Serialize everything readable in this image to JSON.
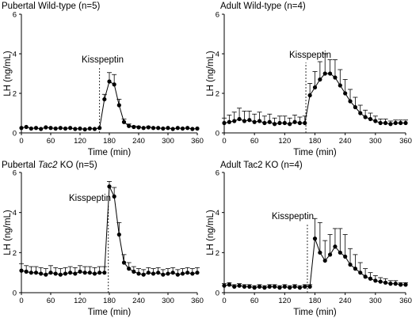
{
  "chart_data": [
    {
      "type": "line",
      "title_parts": [
        {
          "text": "Pubertal Wild-type (n=5)",
          "italic": false
        }
      ],
      "xlabel": "Time (min)",
      "ylabel": "LH (ng/mL)",
      "xlim": [
        0,
        360
      ],
      "ylim": [
        0,
        6
      ],
      "xticks": [
        0,
        60,
        120,
        180,
        240,
        300,
        360
      ],
      "yticks": [
        0,
        2,
        4,
        6
      ],
      "annotation": {
        "text": "Kisspeptin",
        "x": 160
      },
      "series": [
        {
          "x": [
            0,
            10,
            20,
            30,
            40,
            50,
            60,
            70,
            80,
            90,
            100,
            110,
            120,
            130,
            140,
            150,
            160,
            170,
            180,
            190,
            200,
            210,
            220,
            230,
            240,
            250,
            260,
            270,
            280,
            290,
            300,
            310,
            320,
            330,
            340,
            350,
            360
          ],
          "y": [
            0.25,
            0.3,
            0.22,
            0.25,
            0.2,
            0.28,
            0.25,
            0.22,
            0.25,
            0.22,
            0.25,
            0.2,
            0.22,
            0.18,
            0.22,
            0.2,
            0.25,
            1.7,
            2.6,
            2.45,
            1.4,
            0.55,
            0.35,
            0.3,
            0.28,
            0.25,
            0.28,
            0.25,
            0.25,
            0.22,
            0.25,
            0.2,
            0.25,
            0.22,
            0.25,
            0.2,
            0.22
          ],
          "err": [
            0,
            0,
            0,
            0,
            0,
            0,
            0,
            0,
            0,
            0,
            0,
            0,
            0,
            0,
            0,
            0,
            0,
            0.25,
            0.45,
            0.5,
            0.3,
            0.15,
            0.1,
            0.05,
            0.05,
            0,
            0.05,
            0,
            0,
            0,
            0,
            0,
            0,
            0,
            0,
            0,
            0
          ]
        }
      ]
    },
    {
      "type": "line",
      "title_parts": [
        {
          "text": "Adult Wild-type (n=4)",
          "italic": false
        }
      ],
      "xlabel": "Time (min)",
      "ylabel": "LH (ng/mL)",
      "xlim": [
        0,
        360
      ],
      "ylim": [
        0,
        6
      ],
      "xticks": [
        0,
        60,
        120,
        180,
        240,
        300,
        360
      ],
      "yticks": [
        0,
        2,
        4,
        6
      ],
      "annotation": {
        "text": "Kisspeptin",
        "x": 162
      },
      "series": [
        {
          "x": [
            0,
            10,
            20,
            30,
            40,
            50,
            60,
            70,
            80,
            90,
            100,
            110,
            120,
            130,
            140,
            150,
            160,
            170,
            180,
            190,
            200,
            210,
            220,
            230,
            240,
            250,
            260,
            270,
            280,
            290,
            300,
            310,
            320,
            330,
            340,
            350,
            360
          ],
          "y": [
            0.5,
            0.55,
            0.6,
            0.7,
            0.6,
            0.65,
            0.55,
            0.6,
            0.5,
            0.55,
            0.45,
            0.5,
            0.5,
            0.45,
            0.55,
            0.5,
            0.5,
            1.9,
            2.3,
            2.7,
            3.0,
            3.0,
            2.8,
            2.4,
            2.0,
            1.6,
            1.3,
            1.0,
            0.8,
            0.7,
            0.6,
            0.5,
            0.5,
            0.45,
            0.5,
            0.5,
            0.5
          ],
          "err": [
            0.25,
            0.35,
            0.45,
            0.55,
            0.5,
            0.45,
            0.4,
            0.45,
            0.35,
            0.4,
            0.3,
            0.35,
            0.35,
            0.3,
            0.35,
            0.3,
            0.35,
            0.6,
            0.8,
            0.9,
            1.0,
            0.7,
            0.9,
            0.8,
            0.7,
            0.6,
            0.5,
            0.4,
            0.35,
            0.3,
            0.25,
            0.2,
            0.2,
            0.15,
            0.15,
            0.15,
            0.15
          ]
        }
      ]
    },
    {
      "type": "line",
      "title_parts": [
        {
          "text": "Pubertal ",
          "italic": false
        },
        {
          "text": "Tac2",
          "italic": true
        },
        {
          "text": " KO (n=5)",
          "italic": false
        }
      ],
      "xlabel": "Time (min)",
      "ylabel": "LH (ng/mL)",
      "xlim": [
        0,
        360
      ],
      "ylim": [
        0,
        6
      ],
      "xticks": [
        0,
        60,
        120,
        180,
        240,
        300,
        360
      ],
      "yticks": [
        0,
        2,
        4,
        6
      ],
      "annotation": {
        "text": "Kisspeptin",
        "x": 178
      },
      "series": [
        {
          "x": [
            0,
            10,
            20,
            30,
            40,
            50,
            60,
            70,
            80,
            90,
            100,
            110,
            120,
            130,
            140,
            150,
            160,
            170,
            180,
            190,
            200,
            210,
            220,
            230,
            240,
            250,
            260,
            270,
            280,
            290,
            300,
            310,
            320,
            330,
            340,
            350,
            360
          ],
          "y": [
            1.1,
            1.05,
            1.0,
            1.0,
            0.95,
            0.9,
            1.0,
            0.95,
            0.9,
            0.95,
            1.0,
            0.95,
            1.05,
            1.0,
            1.0,
            0.95,
            1.0,
            1.0,
            5.3,
            4.8,
            2.9,
            1.5,
            1.2,
            1.05,
            0.95,
            0.9,
            1.0,
            0.95,
            1.0,
            0.9,
            0.95,
            1.0,
            0.9,
            0.95,
            1.0,
            0.95,
            1.0
          ],
          "err": [
            0.35,
            0.3,
            0.3,
            0.3,
            0.3,
            0.3,
            0.35,
            0.3,
            0.3,
            0.3,
            0.3,
            0.3,
            0.3,
            0.3,
            0.3,
            0.3,
            0.3,
            0.3,
            0.25,
            0.45,
            0.6,
            0.4,
            0.3,
            0.25,
            0.25,
            0.25,
            0.25,
            0.25,
            0.25,
            0.25,
            0.25,
            0.25,
            0.25,
            0.25,
            0.25,
            0.25,
            0.25
          ]
        }
      ]
    },
    {
      "type": "line",
      "title_parts": [
        {
          "text": "Adult Tac2 KO (n=4)",
          "italic": false
        }
      ],
      "xlabel": "Time (min)",
      "ylabel": "LH (ng/mL)",
      "xlim": [
        0,
        360
      ],
      "ylim": [
        0,
        6
      ],
      "xticks": [
        0,
        60,
        120,
        180,
        240,
        300,
        360
      ],
      "yticks": [
        0,
        2,
        4,
        6
      ],
      "annotation": {
        "text": "Kisspeptin",
        "x": 165
      },
      "series": [
        {
          "x": [
            0,
            10,
            20,
            30,
            40,
            50,
            60,
            70,
            80,
            90,
            100,
            110,
            120,
            130,
            140,
            150,
            160,
            170,
            180,
            190,
            200,
            210,
            220,
            230,
            240,
            250,
            260,
            270,
            280,
            290,
            300,
            310,
            320,
            330,
            340,
            350,
            360
          ],
          "y": [
            0.35,
            0.4,
            0.3,
            0.35,
            0.3,
            0.3,
            0.25,
            0.3,
            0.25,
            0.3,
            0.3,
            0.25,
            0.3,
            0.25,
            0.3,
            0.25,
            0.3,
            0.3,
            2.7,
            2.0,
            1.6,
            1.9,
            2.3,
            2.0,
            1.8,
            1.4,
            1.2,
            1.0,
            0.8,
            0.7,
            0.6,
            0.55,
            0.5,
            0.45,
            0.45,
            0.4,
            0.4
          ],
          "err": [
            0.1,
            0.1,
            0.1,
            0.1,
            0.1,
            0.1,
            0.1,
            0.1,
            0.1,
            0.1,
            0.1,
            0.1,
            0.1,
            0.1,
            0.1,
            0.1,
            0.1,
            0.1,
            1.0,
            1.5,
            1.0,
            1.0,
            0.9,
            1.2,
            1.1,
            0.8,
            0.7,
            0.5,
            0.4,
            0.3,
            0.25,
            0.2,
            0.2,
            0.15,
            0.15,
            0.1,
            0.1
          ]
        }
      ]
    }
  ]
}
